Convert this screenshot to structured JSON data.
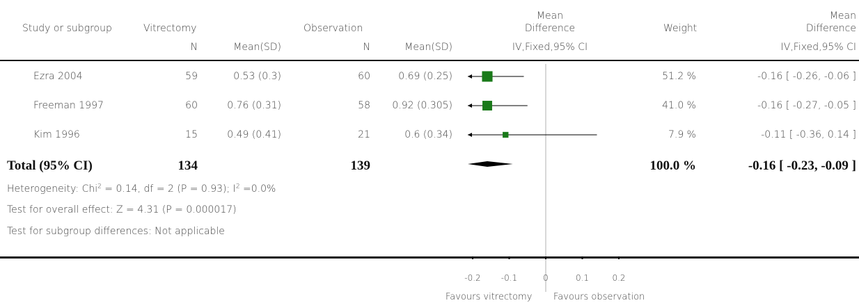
{
  "header": {
    "study": "Study or subgroup",
    "group1": "Vitrectomy",
    "group2": "Observation",
    "md_top": "Mean",
    "md_bottom": "Difference",
    "weight": "Weight",
    "md2_top": "Mean",
    "md2_bottom": "Difference",
    "n1": "N",
    "mean1": "Mean(SD)",
    "n2": "N",
    "mean2": "Mean(SD)",
    "method_plot": "IV,Fixed,95% CI",
    "method_col": "IV,Fixed,95% CI"
  },
  "rows": [
    {
      "study": "Ezra 2004",
      "n1": "59",
      "m1": "0.53 (0.3)",
      "n2": "60",
      "m2": "0.69 (0.25)",
      "weight": "51.2 %",
      "ci_text": "-0.16 [ -0.26, -0.06 ]"
    },
    {
      "study": "Freeman 1997",
      "n1": "60",
      "m1": "0.76 (0.31)",
      "n2": "58",
      "m2": "0.92 (0.305)",
      "weight": "41.0 %",
      "ci_text": "-0.16 [ -0.27, -0.05 ]"
    },
    {
      "study": "Kim 1996",
      "n1": "15",
      "m1": "0.49 (0.41)",
      "n2": "21",
      "m2": "0.6 (0.34)",
      "weight": "7.9 %",
      "ci_text": "-0.11 [ -0.36, 0.14 ]"
    }
  ],
  "total": {
    "label": "Total (95% CI)",
    "n1": "134",
    "n2": "139",
    "weight": "100.0 %",
    "ci_text": "-0.16 [ -0.23, -0.09 ]"
  },
  "footer": {
    "het_pre": "Heterogeneity: Chi",
    "het_mid": " = 0.14, df = 2 (P = 0.93); I",
    "het_post": " =0.0%",
    "overall": "Test for overall effect: Z = 4.31 (P = 0.000017)",
    "subgroup": "Test for subgroup differences: Not applicable",
    "sup": "2"
  },
  "axis": {
    "favours_left": "Favours vitrectomy",
    "favours_right": "Favours observation"
  },
  "colors": {
    "square": "#1a7a1a",
    "line": "#000000",
    "zero_line": "#b0b0b0"
  },
  "chart_data": {
    "type": "forest",
    "xlim": [
      -0.2,
      0.2
    ],
    "ticks": [
      -0.2,
      -0.1,
      0,
      0.1,
      0.2
    ],
    "tick_labels": [
      "-0.2",
      "-0.1",
      "0",
      "0.1",
      "0.2"
    ],
    "studies": [
      {
        "name": "Ezra 2004",
        "estimate": -0.16,
        "lower": -0.26,
        "upper": -0.06,
        "weight": 51.2
      },
      {
        "name": "Freeman 1997",
        "estimate": -0.16,
        "lower": -0.27,
        "upper": -0.05,
        "weight": 41.0
      },
      {
        "name": "Kim 1996",
        "estimate": -0.11,
        "lower": -0.36,
        "upper": 0.14,
        "weight": 7.9
      }
    ],
    "pooled": {
      "estimate": -0.16,
      "lower": -0.23,
      "upper": -0.09
    }
  }
}
